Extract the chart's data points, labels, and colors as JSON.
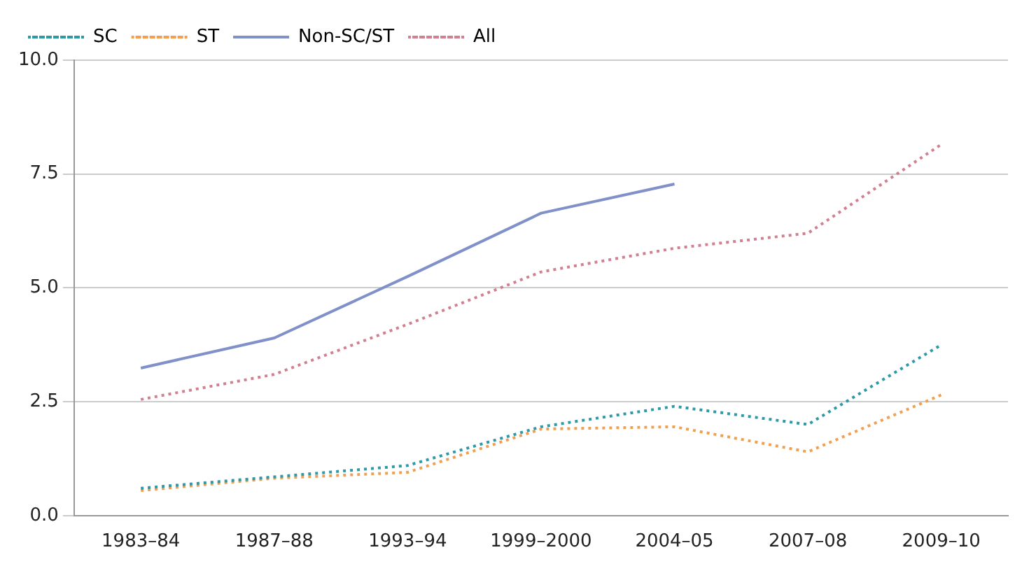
{
  "chart_data": {
    "type": "line",
    "categories": [
      "1983–84",
      "1987–88",
      "1993–94",
      "1999–2000",
      "2004–05",
      "2007–08",
      "2009–10"
    ],
    "series": [
      {
        "name": "SC",
        "color": "#2e9aa8",
        "line_style": "dotted",
        "values": [
          0.6,
          0.85,
          1.1,
          1.95,
          2.4,
          2.0,
          3.75
        ]
      },
      {
        "name": "ST",
        "color": "#f0a050",
        "line_style": "dotted",
        "values": [
          0.55,
          0.82,
          0.95,
          1.9,
          1.95,
          1.4,
          2.65
        ]
      },
      {
        "name": "Non-SC/ST",
        "color": "#8090c8",
        "line_style": "solid",
        "values": [
          3.24,
          3.9,
          5.25,
          6.64,
          7.28,
          null,
          null
        ]
      },
      {
        "name": "All",
        "color": "#d08090",
        "line_style": "dotted",
        "values": [
          2.55,
          3.1,
          4.2,
          5.35,
          5.87,
          6.2,
          8.15
        ]
      }
    ],
    "ylim": [
      0,
      10
    ],
    "yticks": [
      {
        "value": 0,
        "label": "0.0"
      },
      {
        "value": 2.5,
        "label": "2.5"
      },
      {
        "value": 5,
        "label": "5.0"
      },
      {
        "value": 7.5,
        "label": "7.5"
      },
      {
        "value": 10,
        "label": "10.0"
      }
    ],
    "grid": "y",
    "legend": "top left",
    "marker": "none"
  }
}
